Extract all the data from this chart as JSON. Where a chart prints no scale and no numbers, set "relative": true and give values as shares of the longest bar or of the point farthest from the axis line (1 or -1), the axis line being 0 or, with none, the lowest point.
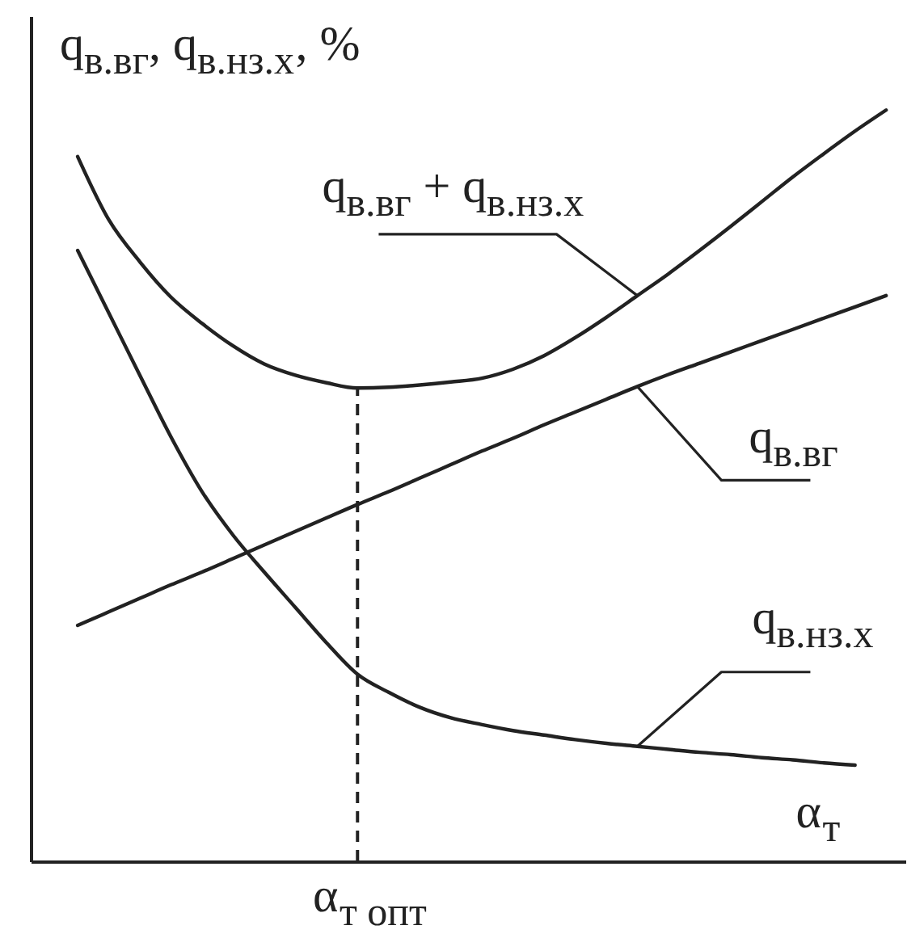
{
  "chart_data": {
    "type": "line",
    "relative": true,
    "ylabel": "q$_{в.вг}$, q$_{в.нз.х}$, %",
    "xlabel": "α$_{т}$",
    "categories": [
      null,
      null,
      null,
      null,
      null,
      null,
      null,
      null,
      null,
      null,
      null,
      null,
      null,
      null,
      null,
      null,
      null,
      null,
      null,
      null,
      null,
      null,
      null,
      null,
      null,
      null,
      null
    ],
    "series": [
      {
        "name": "q$_{в.вг}$ + q$_{в.нз.х}$",
        "color": "#222222",
        "values": [
          0.938,
          0.854,
          0.798,
          0.751,
          0.716,
          0.686,
          0.662,
          0.647,
          0.637,
          0.63,
          0.631,
          0.634,
          0.638,
          0.643,
          0.655,
          0.673,
          0.697,
          0.724,
          0.753,
          0.782,
          0.813,
          0.845,
          0.878,
          0.911,
          0.942,
          0.972,
          1.0
        ]
      },
      {
        "name": "q$_{в.вг}$",
        "color": "#222222",
        "values": [
          0.314,
          0.332,
          0.35,
          0.368,
          0.385,
          0.403,
          0.421,
          0.439,
          0.457,
          0.475,
          0.492,
          0.51,
          0.528,
          0.546,
          0.563,
          0.581,
          0.598,
          0.615,
          0.632,
          0.648,
          0.663,
          0.678,
          0.693,
          0.708,
          0.723,
          0.738,
          0.753
        ]
      },
      {
        "name": "q$_{в.нз.х}$",
        "color": "#222222",
        "values": [
          0.813,
          0.73,
          0.647,
          0.565,
          0.492,
          0.434,
          0.385,
          0.338,
          0.291,
          0.249,
          0.225,
          0.205,
          0.191,
          0.182,
          0.174,
          0.168,
          0.162,
          0.157,
          0.153,
          0.149,
          0.145,
          0.142,
          0.138,
          0.135,
          0.131,
          0.128,
          null
        ]
      }
    ],
    "annotations": [
      "α$_{т опт}$"
    ],
    "tick_labels": false,
    "line_style": "solid"
  }
}
